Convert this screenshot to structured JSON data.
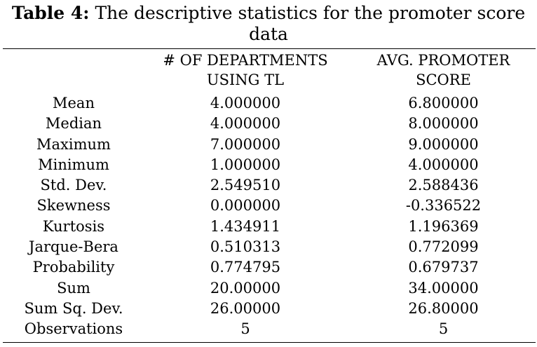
{
  "caption": {
    "label": "Table 4:",
    "text": "The descriptive statistics for the promoter score",
    "text_line2": "data"
  },
  "table": {
    "columns": [
      {
        "line1": "# OF DEPARTMENTS",
        "line2": "USING TL"
      },
      {
        "line1": "AVG. PROMOTER",
        "line2": "SCORE"
      }
    ],
    "rows": [
      {
        "label": "Mean",
        "v1": "4.000000",
        "v2": "6.800000"
      },
      {
        "label": "Median",
        "v1": "4.000000",
        "v2": "8.000000"
      },
      {
        "label": "Maximum",
        "v1": "7.000000",
        "v2": "9.000000"
      },
      {
        "label": "Minimum",
        "v1": "1.000000",
        "v2": "4.000000"
      },
      {
        "label": "Std. Dev.",
        "v1": "2.549510",
        "v2": "2.588436"
      },
      {
        "label": "Skewness",
        "v1": "0.000000",
        "v2": "-0.336522"
      },
      {
        "label": "Kurtosis",
        "v1": "1.434911",
        "v2": "1.196369"
      },
      {
        "label": "Jarque-Bera",
        "v1": "0.510313",
        "v2": "0.772099"
      },
      {
        "label": "Probability",
        "v1": "0.774795",
        "v2": "0.679737"
      },
      {
        "label": "Sum",
        "v1": "20.00000",
        "v2": "34.00000"
      },
      {
        "label": "Sum Sq. Dev.",
        "v1": "26.00000",
        "v2": "26.80000"
      },
      {
        "label": "Observations",
        "v1": "5",
        "v2": "5"
      }
    ]
  }
}
